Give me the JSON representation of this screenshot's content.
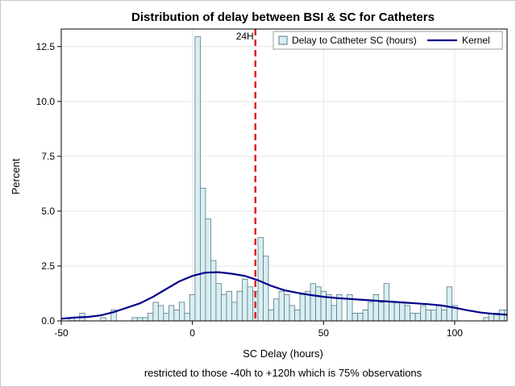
{
  "chart_data": {
    "type": "bar",
    "title": "Distribution of delay between BSI & SC for Catheters",
    "xlabel": "SC Delay (hours)",
    "ylabel": "Percent",
    "footnote": "restricted to those -40h to +120h which is  75% observations",
    "xlim": [
      -50,
      120
    ],
    "ylim": [
      0,
      13.3
    ],
    "xticks": [
      -50,
      0,
      50,
      100
    ],
    "yticks": [
      0.0,
      2.5,
      5.0,
      7.5,
      10.0,
      12.5
    ],
    "xtick_labels": [
      "-50",
      "0",
      "50",
      "100"
    ],
    "ytick_labels": [
      "0.0",
      "2.5",
      "5.0",
      "7.5",
      "10.0",
      "12.5"
    ],
    "grid": true,
    "bin_width": 2,
    "legend": {
      "placement": "top-right",
      "items": [
        {
          "label": "Delay to Catheter SC (hours)",
          "kind": "bar"
        },
        {
          "label": "Kernel",
          "kind": "line"
        }
      ]
    },
    "reference_line": {
      "x": 24,
      "label": "24H",
      "color": "#e02020"
    },
    "colors": {
      "bar_fill": "#d9eef2",
      "bar_stroke": "#557a86",
      "kernel": "#00008b",
      "grid": "#e6e6e6"
    },
    "series": [
      {
        "name": "Delay to Catheter SC (hours)",
        "type": "histogram",
        "bin_starts": [
          -51,
          -49,
          -47,
          -45,
          -43,
          -41,
          -39,
          -37,
          -35,
          -33,
          -31,
          -29,
          -27,
          -25,
          -23,
          -21,
          -19,
          -17,
          -15,
          -13,
          -11,
          -9,
          -7,
          -5,
          -3,
          -1,
          1,
          3,
          5,
          7,
          9,
          11,
          13,
          15,
          17,
          19,
          21,
          23,
          25,
          27,
          29,
          31,
          33,
          35,
          37,
          39,
          41,
          43,
          45,
          47,
          49,
          51,
          53,
          55,
          57,
          59,
          61,
          63,
          65,
          67,
          69,
          71,
          73,
          75,
          77,
          79,
          81,
          83,
          85,
          87,
          89,
          91,
          93,
          95,
          97,
          99,
          101,
          103,
          105,
          107,
          109,
          111,
          113,
          115,
          117,
          119
        ],
        "values": [
          0.0,
          0.0,
          0.15,
          0.0,
          0.35,
          0.0,
          0.0,
          0.0,
          0.15,
          0.0,
          0.5,
          0.0,
          0.0,
          0.0,
          0.15,
          0.15,
          0.15,
          0.35,
          0.85,
          0.7,
          0.35,
          0.7,
          0.5,
          0.85,
          0.35,
          1.2,
          12.95,
          6.05,
          4.65,
          2.75,
          1.7,
          1.2,
          1.35,
          0.85,
          1.35,
          1.9,
          1.55,
          1.35,
          3.8,
          2.95,
          0.5,
          1.0,
          1.35,
          1.2,
          0.7,
          0.5,
          1.2,
          1.35,
          1.7,
          1.55,
          1.35,
          1.2,
          0.7,
          1.2,
          0.0,
          1.2,
          0.35,
          0.35,
          0.5,
          0.85,
          1.2,
          0.85,
          1.7,
          0.85,
          0.85,
          0.85,
          0.7,
          0.35,
          0.35,
          0.7,
          0.5,
          0.5,
          0.7,
          0.5,
          1.55,
          0.7,
          0.0,
          0.0,
          0.0,
          0.0,
          0.0,
          0.15,
          0.35,
          0.35,
          0.5,
          0.5
        ]
      },
      {
        "name": "Kernel",
        "type": "line",
        "x": [
          -50,
          -45,
          -40,
          -35,
          -30,
          -25,
          -20,
          -15,
          -10,
          -5,
          0,
          5,
          10,
          15,
          20,
          25,
          30,
          35,
          40,
          45,
          50,
          55,
          60,
          65,
          70,
          75,
          80,
          85,
          90,
          95,
          100,
          105,
          110,
          115,
          120
        ],
        "y": [
          0.1,
          0.15,
          0.18,
          0.25,
          0.4,
          0.6,
          0.8,
          1.1,
          1.45,
          1.8,
          2.05,
          2.2,
          2.22,
          2.15,
          2.05,
          1.85,
          1.6,
          1.4,
          1.28,
          1.18,
          1.1,
          1.04,
          1.0,
          0.96,
          0.92,
          0.88,
          0.84,
          0.8,
          0.76,
          0.7,
          0.6,
          0.48,
          0.38,
          0.32,
          0.28
        ]
      }
    ]
  }
}
